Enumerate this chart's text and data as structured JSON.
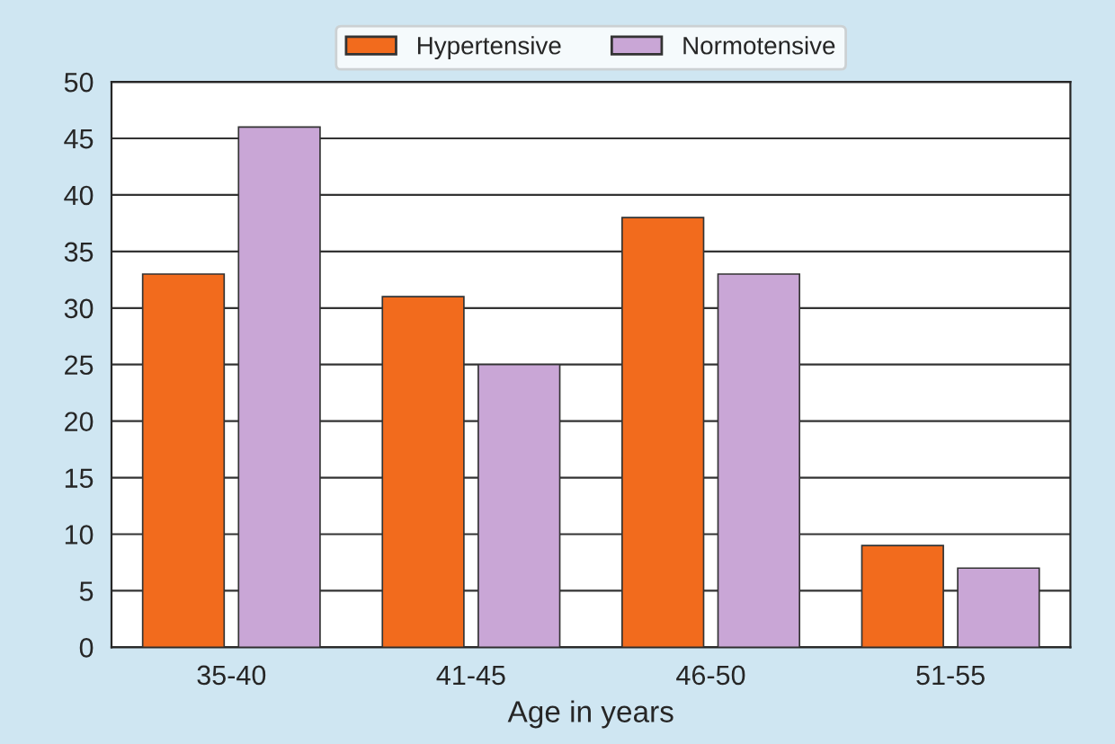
{
  "chart_data": {
    "type": "bar",
    "xlabel": "Age in years",
    "categories": [
      "35-40",
      "41-45",
      "46-50",
      "51-55"
    ],
    "series": [
      {
        "name": "Hypertensive",
        "color": "#f26b1d",
        "values": [
          33,
          31,
          38,
          9
        ]
      },
      {
        "name": "Normotensive",
        "color": "#c9a6d6",
        "values": [
          46,
          25,
          33,
          7
        ]
      }
    ],
    "ylim": [
      0,
      50
    ],
    "yticks": [
      0,
      5,
      10,
      15,
      20,
      25,
      30,
      35,
      40,
      45,
      50
    ],
    "grid": "y",
    "legend": "top"
  }
}
